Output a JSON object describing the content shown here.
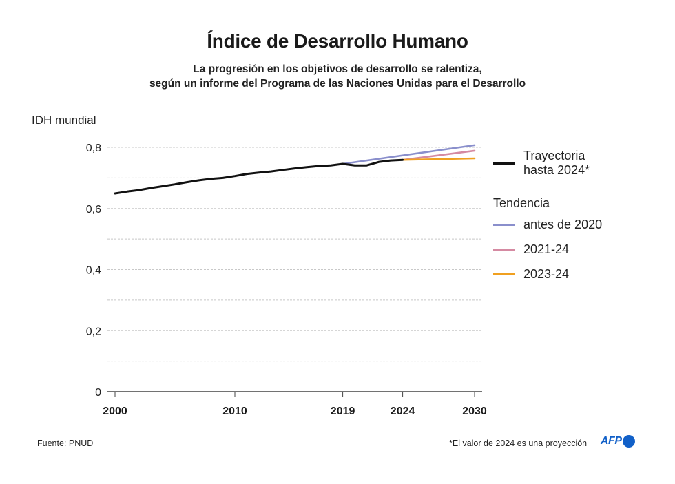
{
  "header": {
    "title": "Índice de Desarrollo Humano",
    "subtitle_line1": "La progresión en los objetivos de desarrollo se ralentiza,",
    "subtitle_line2": "según un informe del Programa de las Naciones Unidas para el Desarrollo"
  },
  "chart_data": {
    "type": "line",
    "title": "Índice de Desarrollo Humano",
    "ylabel": "IDH mundial",
    "xlabel": "",
    "xlim": [
      2000,
      2030
    ],
    "ylim": [
      0,
      0.8
    ],
    "y_ticks": [
      {
        "value": 0,
        "label": "0"
      },
      {
        "value": 0.2,
        "label": "0,2"
      },
      {
        "value": 0.4,
        "label": "0,4"
      },
      {
        "value": 0.6,
        "label": "0,6"
      },
      {
        "value": 0.8,
        "label": "0,8"
      }
    ],
    "y_gridlines": [
      0.1,
      0.2,
      0.3,
      0.4,
      0.5,
      0.6,
      0.7,
      0.8
    ],
    "x_ticks": [
      {
        "value": 2000,
        "label": "2000"
      },
      {
        "value": 2010,
        "label": "2010"
      },
      {
        "value": 2019,
        "label": "2019"
      },
      {
        "value": 2024,
        "label": "2024"
      },
      {
        "value": 2030,
        "label": "2030"
      }
    ],
    "grid": true,
    "legend_position": "right",
    "series": [
      {
        "name": "Trayectoria hasta 2024*",
        "color": "#111111",
        "x": [
          2000,
          2001,
          2002,
          2003,
          2004,
          2005,
          2006,
          2007,
          2008,
          2009,
          2010,
          2011,
          2012,
          2013,
          2014,
          2015,
          2016,
          2017,
          2018,
          2019,
          2020,
          2021,
          2022,
          2023,
          2024
        ],
        "values": [
          0.649,
          0.655,
          0.66,
          0.667,
          0.673,
          0.679,
          0.686,
          0.692,
          0.697,
          0.7,
          0.706,
          0.713,
          0.717,
          0.721,
          0.726,
          0.731,
          0.735,
          0.739,
          0.741,
          0.746,
          0.741,
          0.741,
          0.752,
          0.757,
          0.759
        ]
      },
      {
        "name": "antes de 2020",
        "color": "#8a8fcc",
        "x": [
          2019,
          2030
        ],
        "values": [
          0.746,
          0.807
        ]
      },
      {
        "name": "2021-24",
        "color": "#d58aa2",
        "x": [
          2024,
          2030
        ],
        "values": [
          0.759,
          0.789
        ]
      },
      {
        "name": "2023-24",
        "color": "#f0a020",
        "x": [
          2024,
          2030
        ],
        "values": [
          0.759,
          0.764
        ]
      }
    ]
  },
  "legend": {
    "trajectory_line1": "Trayectoria",
    "trajectory_line2": "hasta 2024*",
    "trend_heading": "Tendencia",
    "items": [
      {
        "label": "antes de 2020",
        "color": "#8a8fcc"
      },
      {
        "label": "2021-24",
        "color": "#d58aa2"
      },
      {
        "label": "2023-24",
        "color": "#f0a020"
      }
    ]
  },
  "footer": {
    "source": "Fuente: PNUD",
    "note": "*El valor de 2024 es una proyección",
    "brand": "AFP",
    "brand_color": "#1160c8"
  }
}
